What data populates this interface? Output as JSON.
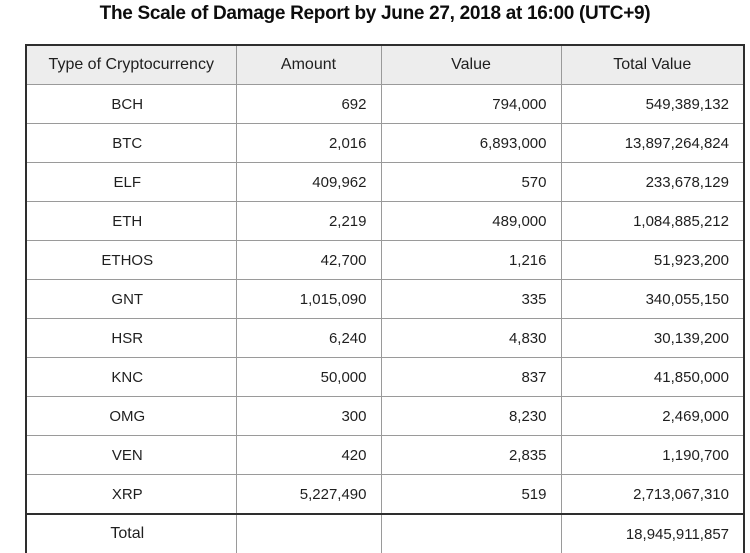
{
  "title": "The Scale of Damage Report by June 27, 2018 at 16:00 (UTC+9)",
  "table": {
    "columns": [
      "Type of Cryptocurrency",
      "Amount",
      "Value",
      "Total Value"
    ],
    "rows": [
      {
        "type": "BCH",
        "amount": "692",
        "value": "794,000",
        "total_value": "549,389,132"
      },
      {
        "type": "BTC",
        "amount": "2,016",
        "value": "6,893,000",
        "total_value": "13,897,264,824"
      },
      {
        "type": "ELF",
        "amount": "409,962",
        "value": "570",
        "total_value": "233,678,129"
      },
      {
        "type": "ETH",
        "amount": "2,219",
        "value": "489,000",
        "total_value": "1,084,885,212"
      },
      {
        "type": "ETHOS",
        "amount": "42,700",
        "value": "1,216",
        "total_value": "51,923,200"
      },
      {
        "type": "GNT",
        "amount": "1,015,090",
        "value": "335",
        "total_value": "340,055,150"
      },
      {
        "type": "HSR",
        "amount": "6,240",
        "value": "4,830",
        "total_value": "30,139,200"
      },
      {
        "type": "KNC",
        "amount": "50,000",
        "value": "837",
        "total_value": "41,850,000"
      },
      {
        "type": "OMG",
        "amount": "300",
        "value": "8,230",
        "total_value": "2,469,000"
      },
      {
        "type": "VEN",
        "amount": "420",
        "value": "2,835",
        "total_value": "1,190,700"
      },
      {
        "type": "XRP",
        "amount": "5,227,490",
        "value": "519",
        "total_value": "2,713,067,310"
      }
    ],
    "total": {
      "label": "Total",
      "amount": "",
      "value": "",
      "total_value": "18,945,911,857"
    }
  },
  "colors": {
    "header_background": "#ededed",
    "outer_border": "#2e2e2e",
    "inner_border": "#9a9a9a",
    "text": "#1f1f1f"
  }
}
